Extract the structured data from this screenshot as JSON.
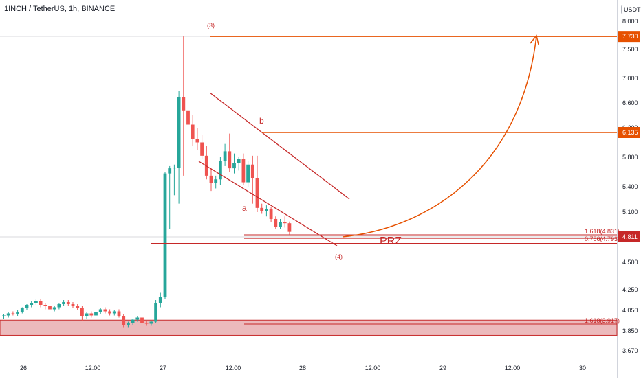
{
  "chart_data": {
    "type": "candlestick",
    "title": "1INCH / TetherUS, 1h, BINANCE",
    "currency_badge": "USDT",
    "y_ticks": [
      "8.000",
      "7.500",
      "7.000",
      "6.600",
      "6.200",
      "5.800",
      "5.400",
      "5.100",
      "4.811",
      "4.500",
      "4.250",
      "4.050",
      "3.850",
      "3.670"
    ],
    "y_ticks_numeric": [
      8.0,
      7.5,
      7.0,
      6.6,
      6.2,
      5.8,
      5.4,
      5.1,
      4.811,
      4.5,
      4.25,
      4.05,
      3.85,
      3.67
    ],
    "x_ticks": [
      "26",
      "12:00",
      "27",
      "12:00",
      "28",
      "12:00",
      "29",
      "12:00",
      "30"
    ],
    "ylim": [
      3.6,
      8.15
    ],
    "grid": false,
    "price_tags": [
      {
        "label": "7.730",
        "value": 7.73,
        "color": "#e65100"
      },
      {
        "label": "6.135",
        "value": 6.135,
        "color": "#e65100"
      },
      {
        "label": "4.811",
        "value": 4.811,
        "color": "#c62828"
      }
    ],
    "candles": [
      [
        3.99,
        4.01,
        3.97,
        4.0
      ],
      [
        4.0,
        4.03,
        3.98,
        4.02
      ],
      [
        4.02,
        4.04,
        4.0,
        4.01
      ],
      [
        4.01,
        4.05,
        3.99,
        4.03
      ],
      [
        4.03,
        4.08,
        4.02,
        4.07
      ],
      [
        4.07,
        4.11,
        4.05,
        4.1
      ],
      [
        4.1,
        4.14,
        4.08,
        4.12
      ],
      [
        4.12,
        4.16,
        4.1,
        4.14
      ],
      [
        4.14,
        4.16,
        4.08,
        4.1
      ],
      [
        4.1,
        4.12,
        4.06,
        4.09
      ],
      [
        4.09,
        4.11,
        4.04,
        4.06
      ],
      [
        4.06,
        4.09,
        4.04,
        4.08
      ],
      [
        4.08,
        4.12,
        4.06,
        4.11
      ],
      [
        4.11,
        4.15,
        4.09,
        4.13
      ],
      [
        4.13,
        4.15,
        4.09,
        4.11
      ],
      [
        4.11,
        4.13,
        4.07,
        4.09
      ],
      [
        4.09,
        4.11,
        4.05,
        4.07
      ],
      [
        4.07,
        4.09,
        3.95,
        3.99
      ],
      [
        3.99,
        4.03,
        3.97,
        4.02
      ],
      [
        4.02,
        4.04,
        3.98,
        4.0
      ],
      [
        4.0,
        4.04,
        3.98,
        4.03
      ],
      [
        4.03,
        4.07,
        4.01,
        4.06
      ],
      [
        4.06,
        4.08,
        4.02,
        4.04
      ],
      [
        4.04,
        4.06,
        4.0,
        4.02
      ],
      [
        4.02,
        4.05,
        4.0,
        4.04
      ],
      [
        4.04,
        4.06,
        3.98,
        3.99
      ],
      [
        3.99,
        4.01,
        3.88,
        3.91
      ],
      [
        3.91,
        3.94,
        3.88,
        3.93
      ],
      [
        3.93,
        3.97,
        3.91,
        3.96
      ],
      [
        3.96,
        3.99,
        3.94,
        3.98
      ],
      [
        3.98,
        4.0,
        3.92,
        3.93
      ],
      [
        3.93,
        3.95,
        3.9,
        3.92
      ],
      [
        3.92,
        3.95,
        3.9,
        3.94
      ],
      [
        3.94,
        4.15,
        3.93,
        4.12
      ],
      [
        4.12,
        4.22,
        4.08,
        4.18
      ],
      [
        4.18,
        5.6,
        4.16,
        5.58
      ],
      [
        5.58,
        5.68,
        4.9,
        5.65
      ],
      [
        5.65,
        5.7,
        5.3,
        5.66
      ],
      [
        5.66,
        6.8,
        5.2,
        6.69
      ],
      [
        6.69,
        7.73,
        5.55,
        6.48
      ],
      [
        6.48,
        7.05,
        6.1,
        6.25
      ],
      [
        6.25,
        6.4,
        5.95,
        6.05
      ],
      [
        6.05,
        6.2,
        5.9,
        6.0
      ],
      [
        6.0,
        6.1,
        5.78,
        5.82
      ],
      [
        5.82,
        5.95,
        5.5,
        5.55
      ],
      [
        5.55,
        5.65,
        5.35,
        5.45
      ],
      [
        5.45,
        5.55,
        5.38,
        5.5
      ],
      [
        5.5,
        5.8,
        5.42,
        5.75
      ],
      [
        5.75,
        5.98,
        5.68,
        5.88
      ],
      [
        5.88,
        6.12,
        5.6,
        5.65
      ],
      [
        5.65,
        5.85,
        5.58,
        5.72
      ],
      [
        5.72,
        5.8,
        5.62,
        5.78
      ],
      [
        5.78,
        5.85,
        5.42,
        5.46
      ],
      [
        5.46,
        5.75,
        5.4,
        5.7
      ],
      [
        5.7,
        5.82,
        5.2,
        5.52
      ],
      [
        5.52,
        5.82,
        5.1,
        5.15
      ],
      [
        5.15,
        5.2,
        5.08,
        5.11
      ],
      [
        5.11,
        5.18,
        5.05,
        5.14
      ],
      [
        5.14,
        5.16,
        4.98,
        5.02
      ],
      [
        5.02,
        5.05,
        4.9,
        4.93
      ],
      [
        4.93,
        5.02,
        4.9,
        4.98
      ],
      [
        4.98,
        5.05,
        4.92,
        4.97
      ],
      [
        4.97,
        4.99,
        4.84,
        4.87
      ]
    ],
    "annotations": [
      {
        "text": "(3)",
        "color": "#c62828"
      },
      {
        "text": "b",
        "color": "#c62828"
      },
      {
        "text": "a",
        "color": "#c62828"
      },
      {
        "text": "(4)",
        "color": "#c62828"
      },
      {
        "text": "PRZ",
        "color": "#c62828"
      },
      {
        "text": "1.618(4.831)",
        "color": "#c62828"
      },
      {
        "text": "0.786(4.793)",
        "color": "#c62828"
      },
      {
        "text": "1.618(3.917)",
        "color": "#c62828"
      }
    ],
    "colors": {
      "up": "#26a69a",
      "down": "#ef5350",
      "annotation": "#c62828",
      "target": "#e65100",
      "zone_fill": "#e6a3a6"
    }
  }
}
